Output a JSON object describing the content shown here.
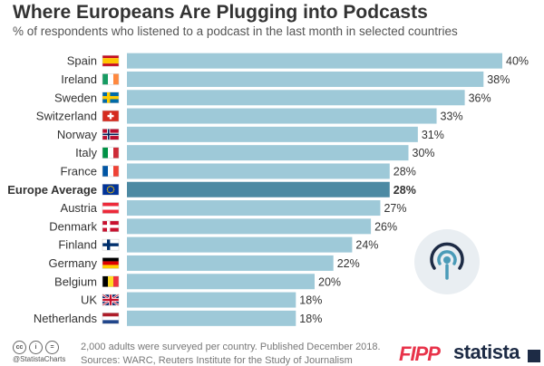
{
  "header": {
    "title": "Where Europeans Are Plugging into Podcasts",
    "subtitle": "% of respondents who listened to a podcast in the last month in selected countries"
  },
  "chart_data": {
    "type": "bar",
    "orientation": "horizontal",
    "title": "Where Europeans Are Plugging into Podcasts",
    "subtitle": "% of respondents who listened to a podcast in the last month in selected countries",
    "categories": [
      "Spain",
      "Ireland",
      "Sweden",
      "Switzerland",
      "Norway",
      "Italy",
      "France",
      "Europe Average",
      "Austria",
      "Denmark",
      "Finland",
      "Germany",
      "Belgium",
      "UK",
      "Netherlands"
    ],
    "values": [
      40,
      38,
      36,
      33,
      31,
      30,
      28,
      28,
      27,
      26,
      24,
      22,
      20,
      18,
      18
    ],
    "value_suffix": "%",
    "highlight": "Europe Average",
    "xlim": [
      0,
      40
    ],
    "grid": false,
    "legend": "none",
    "colors": {
      "bar": "#9ec9d8",
      "highlight": "#4d8aa3",
      "label": "#333333"
    }
  },
  "flags": [
    "spain-flag-icon",
    "ireland-flag-icon",
    "sweden-flag-icon",
    "switzerland-flag-icon",
    "norway-flag-icon",
    "italy-flag-icon",
    "france-flag-icon",
    "eu-flag-icon",
    "austria-flag-icon",
    "denmark-flag-icon",
    "finland-flag-icon",
    "germany-flag-icon",
    "belgium-flag-icon",
    "uk-flag-icon",
    "netherlands-flag-icon"
  ],
  "footer": {
    "handle": "@StatistaCharts",
    "note": "2,000 adults were surveyed per country. Published December 2018.",
    "sources": "Sources: WARC, Reuters Institute for the Study of Journalism",
    "fipp_logo": "FIPP",
    "statista_logo": "statista"
  },
  "icons": {
    "podcast": "podcast-icon"
  }
}
